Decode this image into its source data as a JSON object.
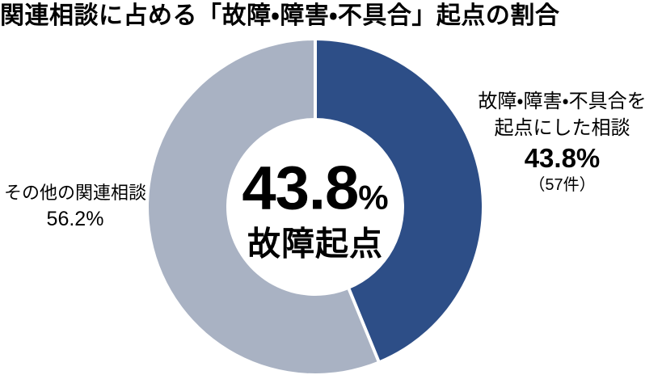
{
  "title": "関連相談に占める「故障・障害・不具合」起点の割合",
  "chart_data": {
    "type": "pie",
    "subtype": "donut",
    "title": "関連相談に占める「故障・障害・不具合」起点の割合",
    "start_angle_deg": 0,
    "direction": "clockwise",
    "slices": [
      {
        "label": "故障・障害・不具合を起点にした相談",
        "value_percent": 43.8,
        "count": 57,
        "color": "#2D4E87"
      },
      {
        "label": "その他の関連相談",
        "value_percent": 56.2,
        "color": "#A9B2C3"
      }
    ],
    "gap_color": "#FFFFFF",
    "center_text": [
      "43.8%",
      "故障起点"
    ]
  },
  "center_label": {
    "value": "43.8",
    "percent_sign": "%",
    "caption": "故障起点"
  },
  "right_label": {
    "line1": "故障・障害・不具合を",
    "line2": "起点にした相談",
    "percent": "43.8%",
    "count": "（57件）"
  },
  "left_label": {
    "line1": "その他の関連相談",
    "percent": "56.2%"
  },
  "colors": {
    "fault_slice": "#2D4E87",
    "other_slice": "#A9B2C3",
    "text": "#000000",
    "background": "#FFFFFF"
  }
}
